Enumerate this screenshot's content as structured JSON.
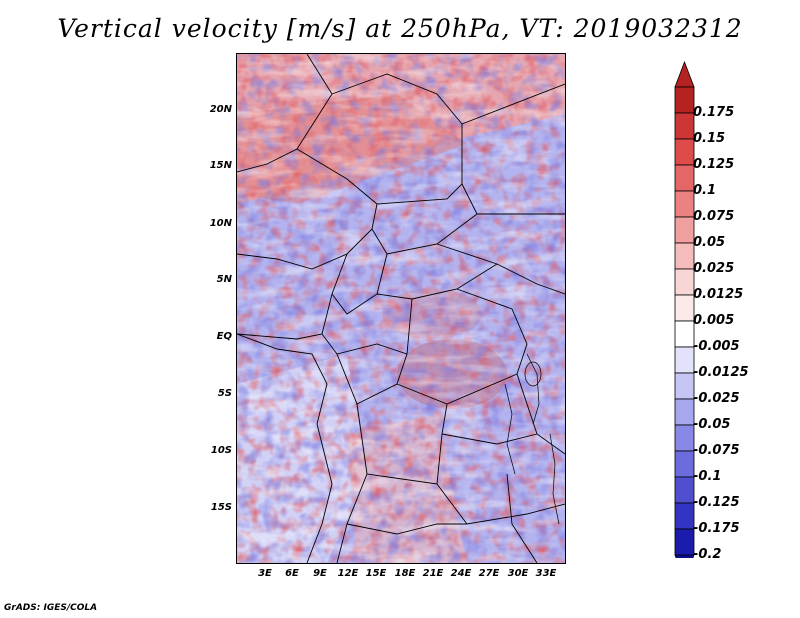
{
  "title": "Vertical velocity [m/s] at 250hPa, VT: 2019032312",
  "footer": "GrADS: IGES/COLA",
  "map": {
    "lat_labels": [
      "20N",
      "15N",
      "10N",
      "5N",
      "EQ",
      "5S",
      "10S",
      "15S"
    ],
    "lon_labels": [
      "3E",
      "6E",
      "9E",
      "12E",
      "15E",
      "18E",
      "21E",
      "24E",
      "27E",
      "30E",
      "33E"
    ]
  },
  "colorbar": {
    "labels": [
      "0.175",
      "0.15",
      "0.125",
      "0.1",
      "0.075",
      "0.05",
      "0.025",
      "0.0125",
      "0.005",
      "-0.005",
      "-0.0125",
      "-0.025",
      "-0.05",
      "-0.075",
      "-0.1",
      "-0.125",
      "-0.175",
      "-0.2"
    ],
    "colors": [
      "#b42222",
      "#cc3636",
      "#dd4b4b",
      "#e46666",
      "#eb8181",
      "#f1a0a0",
      "#f5bcbc",
      "#f9d6d6",
      "#fceaea",
      "#ffffff",
      "#e2e2fb",
      "#c6c6f5",
      "#a7a7ee",
      "#8888e6",
      "#6c6cdc",
      "#4f4fd0",
      "#3434c2",
      "#1c1cac",
      "#0c0c90"
    ]
  },
  "colors": {
    "max_arrow": "#b42222",
    "min_arrow": "#0c0c90"
  }
}
